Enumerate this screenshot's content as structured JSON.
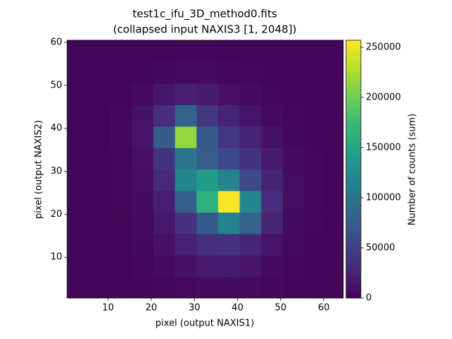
{
  "chart_data": {
    "type": "heatmap",
    "title": "test1c_ifu_3D_method0.fits",
    "subtitle": "(collapsed input NAXIS3 [1, 2048])",
    "x_label": "pixel (output NAXIS1)",
    "y_label": "pixel (output NAXIS2)",
    "colorbar_label": "Number of counts (sum)",
    "colormap": "viridis",
    "x": [
      3,
      8,
      13,
      18,
      23,
      28,
      33,
      38,
      43,
      48,
      53,
      58,
      63
    ],
    "y": [
      3,
      8,
      13,
      18,
      23,
      28,
      33,
      38,
      43,
      48,
      53,
      58
    ],
    "z": [
      [
        3000,
        3000,
        3000,
        3500,
        4650,
        6800,
        8800,
        9000,
        7200,
        5000,
        3650,
        3200,
        3000
      ],
      [
        3000,
        3000,
        3200,
        4300,
        7400,
        13000,
        18400,
        19000,
        14300,
        8300,
        4700,
        3400,
        3000
      ],
      [
        3000,
        3000,
        3500,
        5700,
        12100,
        23700,
        34700,
        37400,
        27900,
        14000,
        6500,
        3800,
        3000
      ],
      [
        3000,
        3000,
        3900,
        7300,
        17600,
        37900,
        73600,
        113600,
        80800,
        25600,
        8700,
        4300,
        3000
      ],
      [
        3000,
        3000,
        4100,
        8500,
        21500,
        76300,
        164100,
        255000,
        119700,
        32800,
        10200,
        4600,
        3000
      ],
      [
        3000,
        3100,
        4100,
        9600,
        30300,
        117700,
        139400,
        115700,
        58500,
        24800,
        10000,
        4600,
        3000
      ],
      [
        3000,
        3000,
        4700,
        12000,
        39100,
        100900,
        75600,
        57400,
        38700,
        19500,
        8300,
        4200,
        3000
      ],
      [
        3000,
        3000,
        5200,
        15000,
        74700,
        215000,
        74300,
        41500,
        25200,
        12900,
        6200,
        3700,
        3000
      ],
      [
        3000,
        3000,
        4800,
        12900,
        33400,
        83200,
        42400,
        25300,
        14000,
        7600,
        4500,
        3100,
        3000
      ],
      [
        3000,
        3000,
        3700,
        7500,
        15900,
        22400,
        19200,
        12000,
        7100,
        4600,
        3400,
        3000,
        3000
      ],
      [
        3000,
        3000,
        3100,
        4000,
        5800,
        6900,
        6500,
        5200,
        4200,
        3400,
        3000,
        3000,
        3000
      ],
      [
        3000,
        3000,
        3000,
        3000,
        3100,
        3400,
        3300,
        3200,
        3000,
        3000,
        3000,
        3000,
        3000
      ]
    ],
    "xlim": [
      0.5,
      64.5
    ],
    "xticks": [
      10,
      20,
      30,
      40,
      50,
      60
    ],
    "ylim": [
      0.5,
      60.5
    ],
    "yticks": [
      10,
      20,
      30,
      40,
      50,
      60
    ],
    "clim": [
      0,
      257000
    ],
    "cticks": [
      0,
      50000,
      100000,
      150000,
      200000,
      250000
    ]
  }
}
